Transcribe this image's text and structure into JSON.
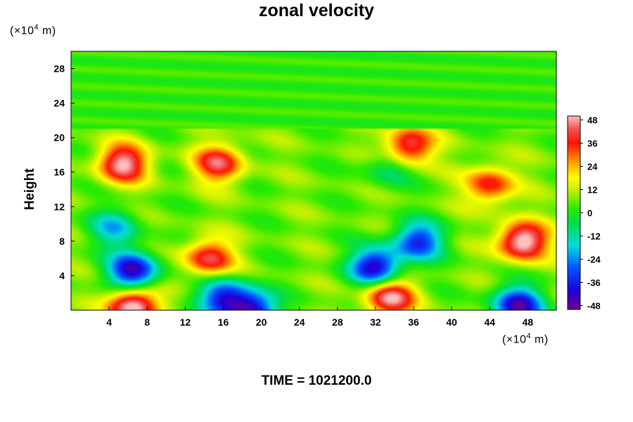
{
  "chart_data": {
    "type": "heatmap",
    "title": "zonal velocity",
    "ylabel": "Height",
    "y_unit": {
      "prefix": "(×10",
      "exponent": "4",
      "suffix": "  m)"
    },
    "x_unit": {
      "prefix": "(×10",
      "exponent": "4",
      "suffix": "  m)"
    },
    "xlim": [
      0,
      51
    ],
    "ylim": [
      0,
      30
    ],
    "x_ticks": [
      "4",
      "8",
      "12",
      "16",
      "20",
      "24",
      "28",
      "32",
      "36",
      "40",
      "44",
      "48"
    ],
    "y_ticks": [
      "4",
      "8",
      "12",
      "16",
      "20",
      "24",
      "28"
    ],
    "colorbar": {
      "range": [
        -50,
        50
      ],
      "ticks": [
        "48",
        "36",
        "24",
        "12",
        "0",
        "-12",
        "-24",
        "-36",
        "-48"
      ]
    },
    "field_features": [
      {
        "kind": "max",
        "x": 6.5,
        "y": 0.5,
        "value": 50
      },
      {
        "kind": "max",
        "x": 14.5,
        "y": 6,
        "value": 36
      },
      {
        "kind": "max",
        "x": 33.5,
        "y": 1.5,
        "value": 44
      },
      {
        "kind": "max",
        "x": 47.5,
        "y": 8,
        "value": 50
      },
      {
        "kind": "max",
        "x": 5.5,
        "y": 17,
        "value": 44
      },
      {
        "kind": "max",
        "x": 15.5,
        "y": 17,
        "value": 36
      },
      {
        "kind": "max",
        "x": 44,
        "y": 14.5,
        "value": 32
      },
      {
        "kind": "max",
        "x": 35.5,
        "y": 19,
        "value": 40
      },
      {
        "kind": "min",
        "x": 6.5,
        "y": 4.5,
        "value": -50
      },
      {
        "kind": "min",
        "x": 16,
        "y": 1.5,
        "value": -40
      },
      {
        "kind": "min",
        "x": 19,
        "y": 0,
        "value": -48
      },
      {
        "kind": "min",
        "x": 36.5,
        "y": 8,
        "value": -40
      },
      {
        "kind": "min",
        "x": 32,
        "y": 5,
        "value": -50
      },
      {
        "kind": "min",
        "x": 47,
        "y": 0.5,
        "value": -50
      },
      {
        "kind": "min",
        "x": 4.5,
        "y": 9.5,
        "value": -24
      },
      {
        "kind": "min",
        "x": 33.5,
        "y": 16.5,
        "value": -16
      }
    ]
  },
  "footer": {
    "time_label": "TIME = 1021200.0"
  }
}
